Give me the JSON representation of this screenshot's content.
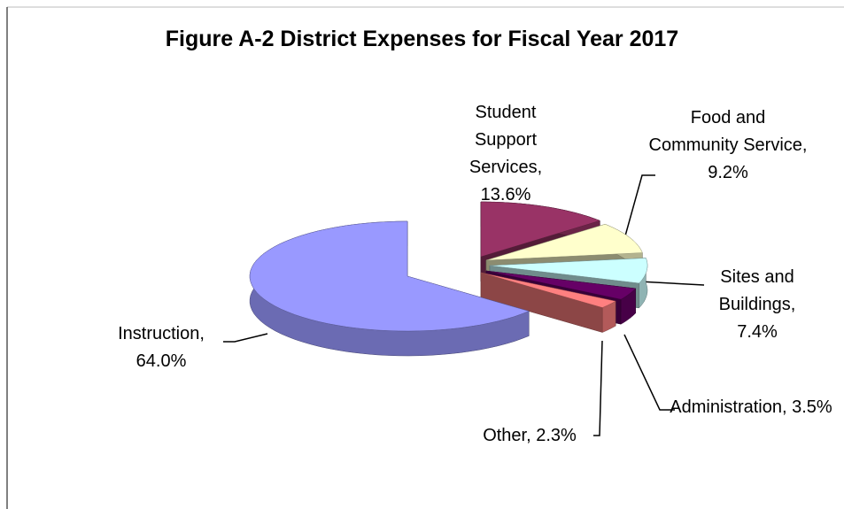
{
  "chart_data": {
    "type": "pie",
    "title": "Figure A-2 District Expenses for Fiscal Year 2017",
    "values": [
      13.6,
      9.2,
      7.4,
      3.5,
      2.3,
      64.0
    ],
    "value_labels": [
      "Student Support Services, 13.6%",
      "Food and Community Service, 9.2%",
      "Sites and Buildings, 7.4%",
      "Administration, 3.5%",
      "Other, 2.3%",
      "Instruction, 64.0%"
    ],
    "colors": [
      "#993366",
      "#ffffcc",
      "#ccffff",
      "#660066",
      "#ff8080",
      "#9999ff"
    ]
  }
}
